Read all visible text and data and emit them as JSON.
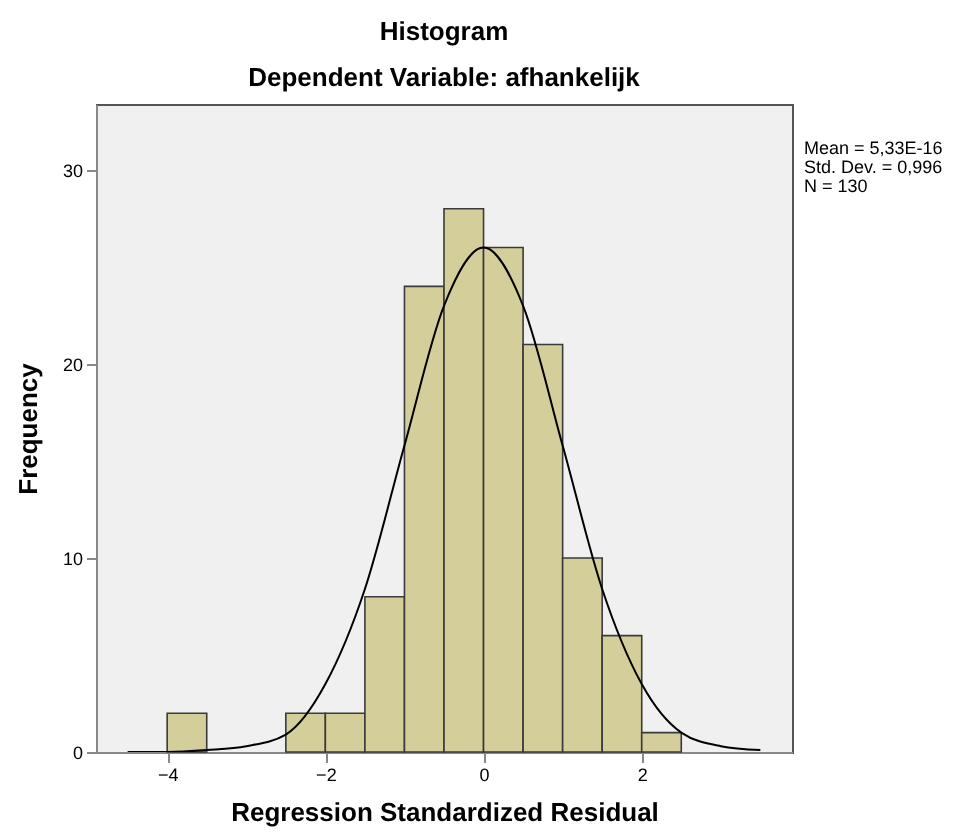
{
  "chart_data": {
    "type": "histogram",
    "title": "Histogram",
    "subtitle": "Dependent Variable: afhankelijk",
    "xlabel": "Regression Standardized Residual",
    "ylabel": "Frequency",
    "bins": [
      -4,
      -3.5,
      -3,
      -2.5,
      -2,
      -1.5,
      -1,
      -0.5,
      0,
      0.5,
      1,
      1.5,
      2,
      2.5
    ],
    "values": [
      2,
      0,
      0,
      2,
      2,
      8,
      24,
      28,
      26,
      21,
      10,
      6,
      1
    ],
    "color": "#d4cf9a",
    "series": [
      {
        "type": "line",
        "color": "#000000",
        "x": [
          -4.5,
          -4,
          -3.5,
          -3,
          -2.5,
          -2,
          -1.5,
          -1,
          -0.5,
          0,
          0.5,
          1,
          1.5,
          2,
          2.5,
          3,
          3.5
        ],
        "values": [
          0,
          0,
          0.1,
          0.3,
          0.9,
          3.5,
          8.4,
          15.8,
          23,
          26,
          23,
          15.8,
          8.4,
          3.5,
          1,
          0.3,
          0.1
        ]
      }
    ],
    "xlim": [
      -4.9,
      3.9
    ],
    "ylim": [
      0,
      33.4
    ],
    "xticks": [
      -4,
      -2,
      0,
      2
    ],
    "yticks": [
      0,
      10,
      20,
      30
    ],
    "grid": false,
    "annotations": [
      "Mean = 5,33E-16",
      "Std. Dev. = 0,996",
      "N = 130"
    ]
  }
}
